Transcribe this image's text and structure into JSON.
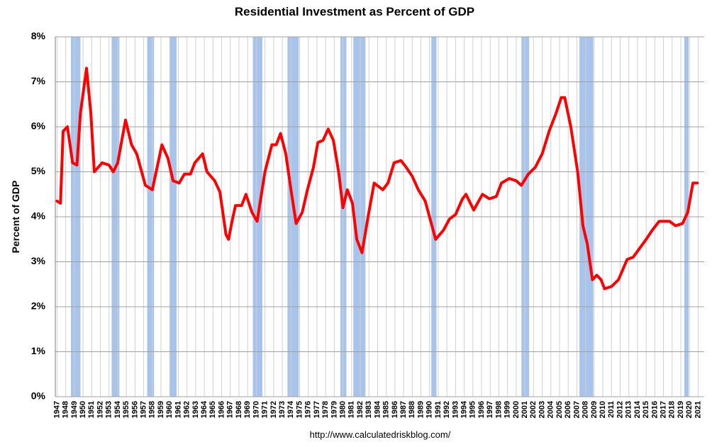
{
  "chart_data": {
    "type": "line",
    "title": "Residential Investment as Percent of GDP",
    "y_label": "Percent of GDP",
    "footer": "http://www.calculatedriskblog.com/",
    "xlim": [
      1946.8,
      2021.7
    ],
    "ylim": [
      0,
      8
    ],
    "yticks": [
      {
        "value": 0,
        "label": "0%"
      },
      {
        "value": 1,
        "label": "1%"
      },
      {
        "value": 2,
        "label": "2%"
      },
      {
        "value": 3,
        "label": "3%"
      },
      {
        "value": 4,
        "label": "4%"
      },
      {
        "value": 5,
        "label": "5%"
      },
      {
        "value": 6,
        "label": "6%"
      },
      {
        "value": 7,
        "label": "7%"
      },
      {
        "value": 8,
        "label": "8%"
      }
    ],
    "xticks": [
      1947,
      1948,
      1949,
      1950,
      1951,
      1952,
      1953,
      1954,
      1955,
      1956,
      1957,
      1958,
      1959,
      1960,
      1961,
      1962,
      1963,
      1964,
      1965,
      1966,
      1967,
      1968,
      1969,
      1970,
      1971,
      1972,
      1973,
      1974,
      1975,
      1976,
      1977,
      1978,
      1979,
      1980,
      1981,
      1982,
      1983,
      1984,
      1985,
      1986,
      1987,
      1988,
      1989,
      1990,
      1991,
      1992,
      1993,
      1994,
      1995,
      1996,
      1997,
      1998,
      1999,
      2000,
      2001,
      2002,
      2003,
      2004,
      2005,
      2006,
      2007,
      2008,
      2009,
      2010,
      2011,
      2012,
      2013,
      2014,
      2015,
      2016,
      2017,
      2018,
      2019,
      2020,
      2021
    ],
    "grid": true,
    "recession_color": "#a9c4eb",
    "recessions": [
      [
        1948.6,
        1949.7
      ],
      [
        1953.3,
        1954.2
      ],
      [
        1957.4,
        1958.2
      ],
      [
        1960.0,
        1960.8
      ],
      [
        1969.6,
        1970.7
      ],
      [
        1973.6,
        1974.9
      ],
      [
        1979.7,
        1980.4
      ],
      [
        1981.2,
        1982.6
      ],
      [
        1990.2,
        1990.8
      ],
      [
        2000.6,
        2001.5
      ],
      [
        2007.3,
        2008.9
      ],
      [
        2019.4,
        2019.9
      ]
    ],
    "series": [
      {
        "name": "Residential Investment",
        "color": "#ff0000",
        "x": [
          1947.0,
          1947.4,
          1947.7,
          1948.2,
          1948.8,
          1949.3,
          1949.7,
          1950.4,
          1950.9,
          1951.3,
          1952.2,
          1953.0,
          1953.5,
          1954.0,
          1954.9,
          1955.6,
          1956.2,
          1957.2,
          1958.0,
          1959.1,
          1959.8,
          1960.4,
          1961.1,
          1961.7,
          1962.4,
          1962.9,
          1963.8,
          1964.3,
          1965.2,
          1965.8,
          1966.5,
          1966.8,
          1967.2,
          1967.6,
          1968.3,
          1968.8,
          1969.5,
          1970.1,
          1971.0,
          1971.8,
          1972.3,
          1972.8,
          1973.4,
          1974.0,
          1974.6,
          1975.3,
          1975.9,
          1976.6,
          1977.1,
          1977.7,
          1978.3,
          1978.9,
          1979.5,
          1980.0,
          1980.5,
          1981.1,
          1981.6,
          1982.2,
          1982.9,
          1983.6,
          1984.6,
          1985.2,
          1985.9,
          1986.7,
          1987.3,
          1988.0,
          1988.7,
          1989.5,
          1990.7,
          1991.6,
          1992.3,
          1993.0,
          1993.8,
          1994.2,
          1995.1,
          1996.1,
          1996.9,
          1997.7,
          1998.3,
          1999.2,
          2000.0,
          2000.6,
          2001.4,
          2002.2,
          2003.0,
          2003.8,
          2004.6,
          2005.2,
          2005.6,
          2006.3,
          2007.1,
          2007.7,
          2008.2,
          2008.8,
          2009.3,
          2009.8,
          2010.2,
          2011.0,
          2011.8,
          2012.8,
          2013.5,
          2015.0,
          2015.7,
          2016.5,
          2017.7,
          2018.4,
          2019.2,
          2019.8,
          2020.4,
          2020.9
        ],
        "values": [
          4.35,
          4.3,
          5.9,
          6.0,
          5.2,
          5.15,
          6.3,
          7.3,
          6.3,
          5.0,
          5.2,
          5.15,
          5.0,
          5.2,
          6.15,
          5.6,
          5.4,
          4.7,
          4.6,
          5.6,
          5.3,
          4.8,
          4.75,
          4.95,
          4.95,
          5.2,
          5.4,
          5.0,
          4.8,
          4.55,
          3.6,
          3.5,
          3.9,
          4.25,
          4.25,
          4.5,
          4.1,
          3.9,
          5.0,
          5.6,
          5.6,
          5.85,
          5.4,
          4.6,
          3.85,
          4.1,
          4.6,
          5.1,
          5.65,
          5.7,
          5.95,
          5.7,
          5.0,
          4.2,
          4.6,
          4.3,
          3.5,
          3.2,
          4.0,
          4.75,
          4.6,
          4.75,
          5.2,
          5.25,
          5.1,
          4.9,
          4.6,
          4.35,
          3.5,
          3.7,
          3.95,
          4.05,
          4.4,
          4.5,
          4.15,
          4.5,
          4.4,
          4.45,
          4.75,
          4.85,
          4.8,
          4.7,
          4.95,
          5.1,
          5.4,
          5.9,
          6.3,
          6.65,
          6.65,
          6.0,
          5.0,
          3.8,
          3.4,
          2.6,
          2.7,
          2.6,
          2.4,
          2.45,
          2.6,
          3.05,
          3.1,
          3.5,
          3.7,
          3.9,
          3.9,
          3.8,
          3.85,
          4.1,
          4.75,
          4.75
        ]
      }
    ]
  }
}
